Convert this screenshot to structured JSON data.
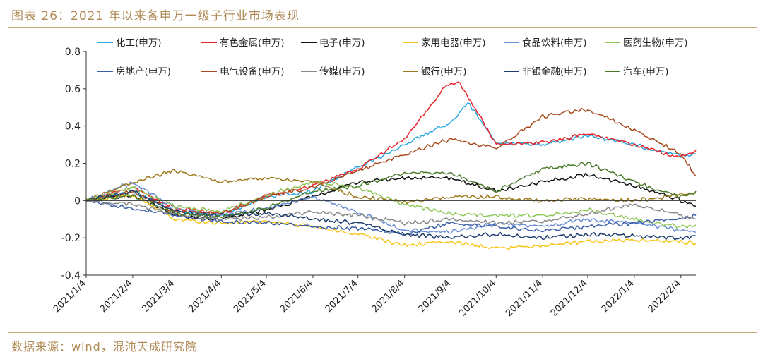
{
  "title": "图表 26：2021 年以来各申万一级子行业市场表现",
  "source": "数据来源：wind，混沌天成研究院",
  "chart_data": {
    "type": "line",
    "title": "图表 26：2021 年以来各申万一级子行业市场表现",
    "xlabel": "",
    "ylabel": "",
    "ylim": [
      -0.4,
      0.8
    ],
    "yticks": [
      -0.4,
      -0.2,
      0,
      0.2,
      0.4,
      0.6,
      0.8
    ],
    "ytick_labels": [
      "-0.4",
      "-0.2",
      "0",
      "0.2",
      "0.4",
      "0.6",
      "0.8"
    ],
    "xticks": [
      "2021/1/4",
      "2021/2/4",
      "2021/3/4",
      "2021/4/4",
      "2021/5/4",
      "2021/6/4",
      "2021/7/4",
      "2021/8/4",
      "2021/9/4",
      "2021/10/4",
      "2021/11/4",
      "2021/12/4",
      "2022/1/4",
      "2022/2/4"
    ],
    "grid": false,
    "legend_position": "top",
    "series": [
      {
        "name": "化工(申万)",
        "color": "#2aa7e0",
        "points": [
          [
            "2021/1/4",
            0
          ],
          [
            "2021/2/4",
            0.05
          ],
          [
            "2021/3/4",
            -0.05
          ],
          [
            "2021/4/4",
            -0.08
          ],
          [
            "2021/5/4",
            0.02
          ],
          [
            "2021/6/4",
            0.05
          ],
          [
            "2021/7/4",
            0.18
          ],
          [
            "2021/8/4",
            0.3
          ],
          [
            "2021/9/4",
            0.42
          ],
          [
            "2021/9/15",
            0.53
          ],
          [
            "2021/10/4",
            0.31
          ],
          [
            "2021/11/4",
            0.3
          ],
          [
            "2021/12/4",
            0.35
          ],
          [
            "2022/1/4",
            0.3
          ],
          [
            "2022/2/4",
            0.24
          ],
          [
            "2022/2/14",
            0.25
          ]
        ]
      },
      {
        "name": "有色金属(申万)",
        "color": "#e8232a",
        "points": [
          [
            "2021/1/4",
            0
          ],
          [
            "2021/2/4",
            0.07
          ],
          [
            "2021/3/4",
            -0.04
          ],
          [
            "2021/4/4",
            -0.07
          ],
          [
            "2021/5/4",
            0.03
          ],
          [
            "2021/6/4",
            0.08
          ],
          [
            "2021/7/4",
            0.17
          ],
          [
            "2021/8/4",
            0.33
          ],
          [
            "2021/9/1",
            0.62
          ],
          [
            "2021/9/10",
            0.63
          ],
          [
            "2021/10/4",
            0.3
          ],
          [
            "2021/11/4",
            0.31
          ],
          [
            "2021/12/4",
            0.36
          ],
          [
            "2022/1/4",
            0.3
          ],
          [
            "2022/2/4",
            0.23
          ],
          [
            "2022/2/14",
            0.27
          ]
        ]
      },
      {
        "name": "电子(申万)",
        "color": "#111111",
        "points": [
          [
            "2021/1/4",
            0
          ],
          [
            "2021/2/4",
            0.03
          ],
          [
            "2021/3/4",
            -0.08
          ],
          [
            "2021/4/4",
            -0.1
          ],
          [
            "2021/5/4",
            -0.05
          ],
          [
            "2021/6/4",
            0.02
          ],
          [
            "2021/7/4",
            0.1
          ],
          [
            "2021/8/4",
            0.12
          ],
          [
            "2021/9/4",
            0.12
          ],
          [
            "2021/10/4",
            0.05
          ],
          [
            "2021/11/4",
            0.1
          ],
          [
            "2021/12/4",
            0.14
          ],
          [
            "2022/1/4",
            0.08
          ],
          [
            "2022/2/4",
            0.0
          ],
          [
            "2022/2/14",
            -0.03
          ]
        ]
      },
      {
        "name": "家用电器(申万)",
        "color": "#f5c518",
        "points": [
          [
            "2021/1/4",
            0
          ],
          [
            "2021/2/4",
            0.03
          ],
          [
            "2021/3/4",
            -0.1
          ],
          [
            "2021/4/4",
            -0.12
          ],
          [
            "2021/5/4",
            -0.11
          ],
          [
            "2021/6/4",
            -0.14
          ],
          [
            "2021/7/4",
            -0.18
          ],
          [
            "2021/8/4",
            -0.24
          ],
          [
            "2021/9/4",
            -0.22
          ],
          [
            "2021/10/4",
            -0.26
          ],
          [
            "2021/11/4",
            -0.24
          ],
          [
            "2021/12/4",
            -0.22
          ],
          [
            "2022/1/4",
            -0.21
          ],
          [
            "2022/2/4",
            -0.22
          ],
          [
            "2022/2/14",
            -0.23
          ]
        ]
      },
      {
        "name": "食品饮料(申万)",
        "color": "#6a8ed6",
        "points": [
          [
            "2021/1/4",
            0
          ],
          [
            "2021/2/4",
            0.1
          ],
          [
            "2021/3/4",
            -0.04
          ],
          [
            "2021/4/4",
            -0.08
          ],
          [
            "2021/5/4",
            -0.04
          ],
          [
            "2021/6/4",
            0.02
          ],
          [
            "2021/7/4",
            -0.06
          ],
          [
            "2021/8/4",
            -0.16
          ],
          [
            "2021/9/4",
            -0.17
          ],
          [
            "2021/10/4",
            -0.12
          ],
          [
            "2021/11/4",
            -0.14
          ],
          [
            "2021/12/4",
            -0.1
          ],
          [
            "2022/1/4",
            -0.12
          ],
          [
            "2022/2/4",
            -0.16
          ],
          [
            "2022/2/14",
            -0.17
          ]
        ]
      },
      {
        "name": "医药生物(申万)",
        "color": "#8fc85a",
        "points": [
          [
            "2021/1/4",
            0
          ],
          [
            "2021/2/4",
            0.07
          ],
          [
            "2021/3/4",
            -0.03
          ],
          [
            "2021/4/4",
            -0.06
          ],
          [
            "2021/5/4",
            0.03
          ],
          [
            "2021/6/4",
            0.1
          ],
          [
            "2021/7/4",
            0.07
          ],
          [
            "2021/8/4",
            -0.02
          ],
          [
            "2021/9/4",
            -0.07
          ],
          [
            "2021/10/4",
            -0.08
          ],
          [
            "2021/11/4",
            -0.08
          ],
          [
            "2021/12/4",
            -0.05
          ],
          [
            "2022/1/4",
            -0.1
          ],
          [
            "2022/2/4",
            -0.14
          ],
          [
            "2022/2/14",
            -0.13
          ]
        ]
      },
      {
        "name": "房地产(申万)",
        "color": "#3a5fa8",
        "points": [
          [
            "2021/1/4",
            0
          ],
          [
            "2021/2/4",
            -0.04
          ],
          [
            "2021/3/4",
            -0.08
          ],
          [
            "2021/4/4",
            -0.11
          ],
          [
            "2021/5/4",
            -0.12
          ],
          [
            "2021/6/4",
            -0.14
          ],
          [
            "2021/7/4",
            -0.15
          ],
          [
            "2021/8/4",
            -0.18
          ],
          [
            "2021/9/4",
            -0.12
          ],
          [
            "2021/10/4",
            -0.14
          ],
          [
            "2021/11/4",
            -0.16
          ],
          [
            "2021/12/4",
            -0.14
          ],
          [
            "2022/1/4",
            -0.12
          ],
          [
            "2022/2/4",
            -0.1
          ],
          [
            "2022/2/14",
            -0.08
          ]
        ]
      },
      {
        "name": "电气设备(申万)",
        "color": "#a94a1e",
        "points": [
          [
            "2021/1/4",
            0
          ],
          [
            "2021/2/4",
            0.05
          ],
          [
            "2021/3/4",
            -0.06
          ],
          [
            "2021/4/4",
            -0.07
          ],
          [
            "2021/5/4",
            0.02
          ],
          [
            "2021/6/4",
            0.07
          ],
          [
            "2021/7/4",
            0.16
          ],
          [
            "2021/8/4",
            0.25
          ],
          [
            "2021/9/4",
            0.33
          ],
          [
            "2021/10/4",
            0.28
          ],
          [
            "2021/11/4",
            0.45
          ],
          [
            "2021/12/4",
            0.49
          ],
          [
            "2022/1/4",
            0.38
          ],
          [
            "2022/2/4",
            0.25
          ],
          [
            "2022/2/14",
            0.13
          ]
        ]
      },
      {
        "name": "传媒(申万)",
        "color": "#8a8a8a",
        "points": [
          [
            "2021/1/4",
            0
          ],
          [
            "2021/2/4",
            -0.02
          ],
          [
            "2021/3/4",
            -0.07
          ],
          [
            "2021/4/4",
            -0.1
          ],
          [
            "2021/5/4",
            -0.09
          ],
          [
            "2021/6/4",
            -0.06
          ],
          [
            "2021/7/4",
            -0.08
          ],
          [
            "2021/8/4",
            -0.12
          ],
          [
            "2021/9/4",
            -0.1
          ],
          [
            "2021/10/4",
            -0.12
          ],
          [
            "2021/11/4",
            -0.11
          ],
          [
            "2021/12/4",
            -0.07
          ],
          [
            "2022/1/4",
            -0.02
          ],
          [
            "2022/2/4",
            -0.08
          ],
          [
            "2022/2/14",
            -0.1
          ]
        ]
      },
      {
        "name": "银行(申万)",
        "color": "#9c7a1a",
        "points": [
          [
            "2021/1/4",
            0
          ],
          [
            "2021/2/4",
            0.1
          ],
          [
            "2021/3/4",
            0.16
          ],
          [
            "2021/4/4",
            0.1
          ],
          [
            "2021/5/4",
            0.12
          ],
          [
            "2021/6/4",
            0.1
          ],
          [
            "2021/7/4",
            0.02
          ],
          [
            "2021/8/4",
            -0.01
          ],
          [
            "2021/9/4",
            0.02
          ],
          [
            "2021/10/4",
            0.02
          ],
          [
            "2021/11/4",
            0.0
          ],
          [
            "2021/12/4",
            0.01
          ],
          [
            "2022/1/4",
            0.0
          ],
          [
            "2022/2/4",
            0.03
          ],
          [
            "2022/2/14",
            0.04
          ]
        ]
      },
      {
        "name": "非银金融(申万)",
        "color": "#1f3f70",
        "points": [
          [
            "2021/1/4",
            0
          ],
          [
            "2021/2/4",
            0.05
          ],
          [
            "2021/3/4",
            -0.06
          ],
          [
            "2021/4/4",
            -0.08
          ],
          [
            "2021/5/4",
            -0.07
          ],
          [
            "2021/6/4",
            -0.1
          ],
          [
            "2021/7/4",
            -0.12
          ],
          [
            "2021/8/4",
            -0.18
          ],
          [
            "2021/9/4",
            -0.2
          ],
          [
            "2021/10/4",
            -0.18
          ],
          [
            "2021/11/4",
            -0.2
          ],
          [
            "2021/12/4",
            -0.18
          ],
          [
            "2022/1/4",
            -0.19
          ],
          [
            "2022/2/4",
            -0.2
          ],
          [
            "2022/2/14",
            -0.19
          ]
        ]
      },
      {
        "name": "汽车(申万)",
        "color": "#4a7a2c",
        "points": [
          [
            "2021/1/4",
            0
          ],
          [
            "2021/2/4",
            0.03
          ],
          [
            "2021/3/4",
            -0.07
          ],
          [
            "2021/4/4",
            -0.09
          ],
          [
            "2021/5/4",
            -0.04
          ],
          [
            "2021/6/4",
            0.05
          ],
          [
            "2021/7/4",
            0.08
          ],
          [
            "2021/8/4",
            0.15
          ],
          [
            "2021/9/4",
            0.15
          ],
          [
            "2021/10/4",
            0.05
          ],
          [
            "2021/11/4",
            0.17
          ],
          [
            "2021/12/4",
            0.2
          ],
          [
            "2022/1/4",
            0.1
          ],
          [
            "2022/2/4",
            0.02
          ],
          [
            "2022/2/14",
            0.05
          ]
        ]
      }
    ]
  }
}
